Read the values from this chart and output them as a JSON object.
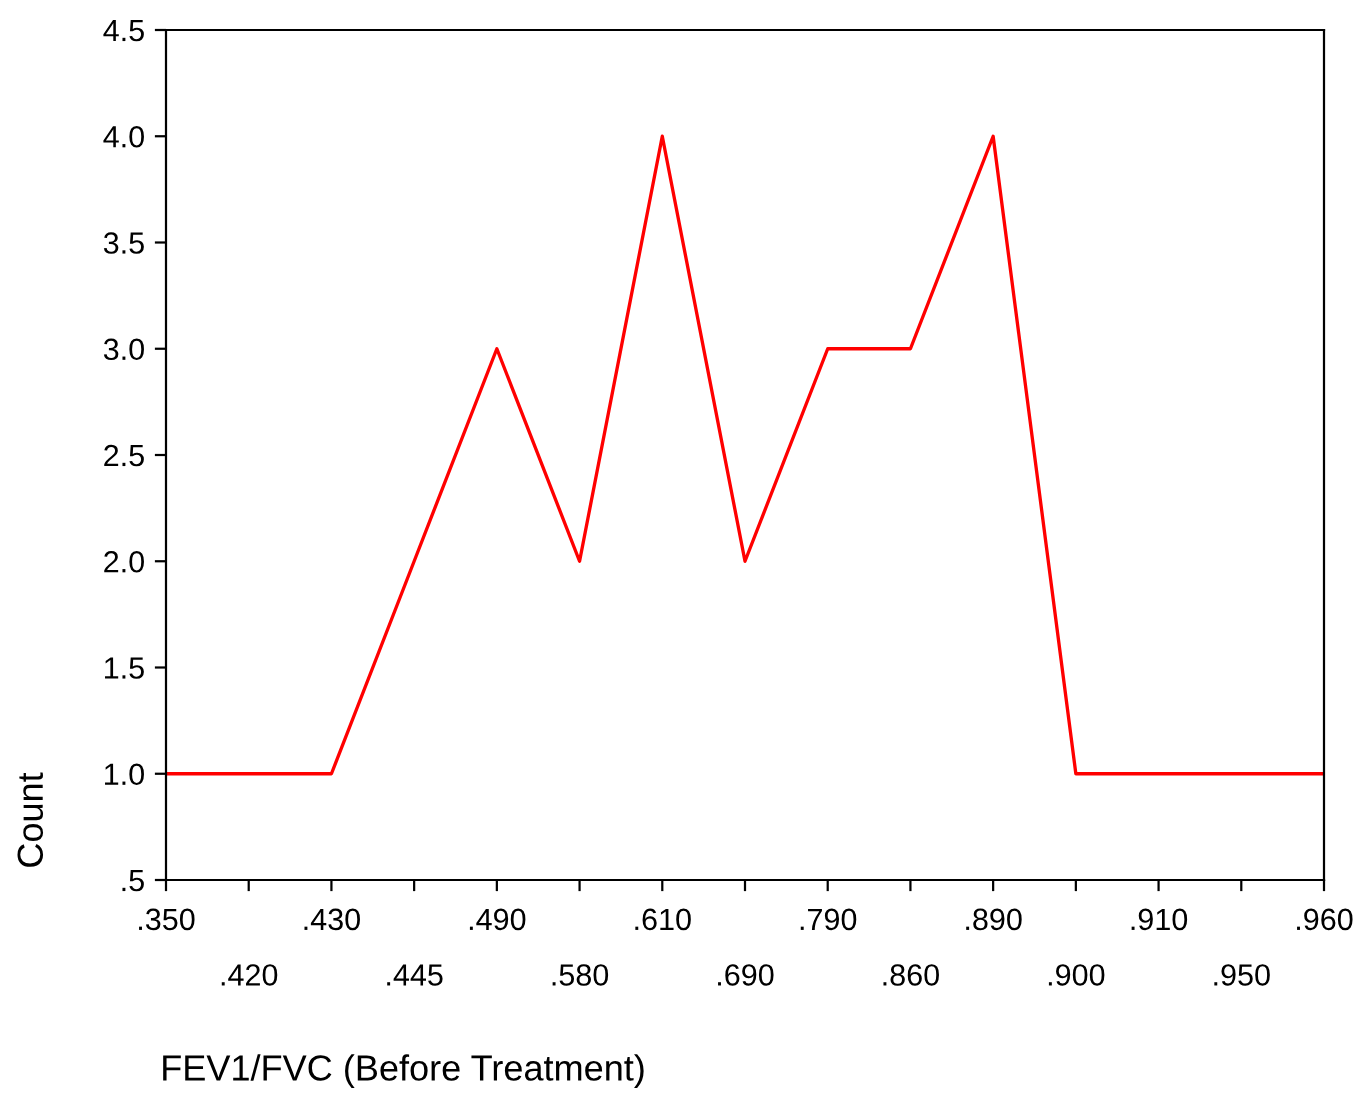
{
  "chart_data": {
    "type": "line",
    "xlabel": "FEV1/FVC (Before Treatment)",
    "ylabel": "Count",
    "categories": [
      ".350",
      ".420",
      ".430",
      ".445",
      ".490",
      ".580",
      ".610",
      ".690",
      ".790",
      ".860",
      ".890",
      ".900",
      ".910",
      ".950",
      ".960"
    ],
    "series": [
      {
        "color": "#ff0000",
        "values": [
          1,
          1,
          1,
          2,
          3,
          2,
          4,
          2,
          3,
          3,
          4,
          1,
          1,
          1,
          1
        ]
      }
    ],
    "ylim": [
      0.5,
      4.5
    ],
    "yticks": [
      {
        "value": 0.5,
        "label": ".5"
      },
      {
        "value": 1,
        "label": "1.0"
      },
      {
        "value": 1.5,
        "label": "1.5"
      },
      {
        "value": 2,
        "label": "2.0"
      },
      {
        "value": 2.5,
        "label": "2.5"
      },
      {
        "value": 3,
        "label": "3.0"
      },
      {
        "value": 3.5,
        "label": "3.5"
      },
      {
        "value": 4,
        "label": "4.0"
      },
      {
        "value": 4.5,
        "label": "4.5"
      }
    ],
    "grid": false,
    "marker": "none",
    "line_style": "solid"
  }
}
